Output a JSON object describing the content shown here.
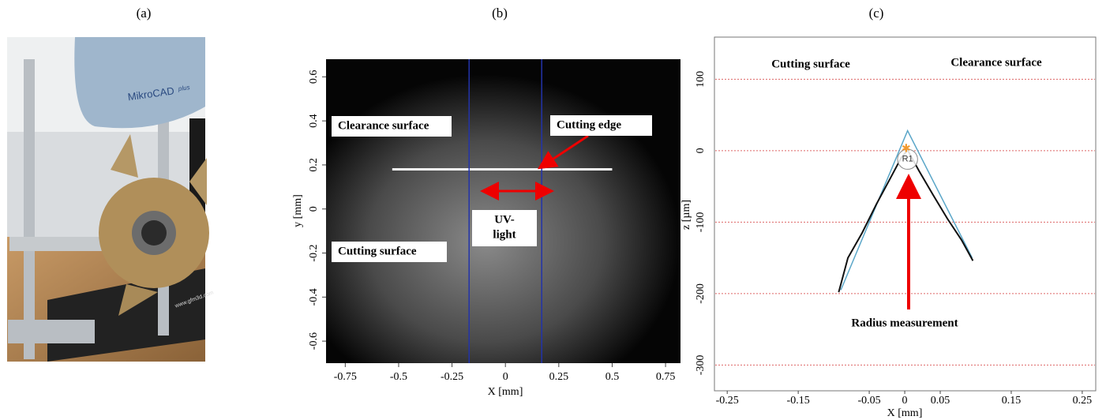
{
  "panels": {
    "a": {
      "label": "(a)",
      "brand": "MikroCAD",
      "brand_sup": "plus",
      "site": "www.gfm3d.com"
    },
    "b": {
      "label": "(b)",
      "xlabel": "X [mm]",
      "ylabel": "y [mm]",
      "xlim": [
        -0.84,
        0.82
      ],
      "ylim": [
        -0.7,
        0.68
      ],
      "xticks": [
        -0.75,
        -0.5,
        -0.25,
        0,
        0.25,
        0.5,
        0.75
      ],
      "yticks": [
        -0.6,
        -0.4,
        -0.2,
        0,
        0.2,
        0.4,
        0.6
      ],
      "edge": {
        "x": [
          -0.53,
          0.5
        ],
        "y": 0.18
      },
      "uv_band": [
        -0.17,
        0.17
      ],
      "annotations": [
        [
          "Clearance surface"
        ],
        [
          "Cutting edge"
        ],
        [
          "Cutting surface"
        ],
        [
          "UV-",
          "light"
        ]
      ]
    },
    "c": {
      "label": "(c)",
      "xlabel": "X [mm]",
      "ylabel": "z [µm]",
      "xlim": [
        -0.268,
        0.269
      ],
      "ylim": [
        -336,
        159
      ],
      "xticks": [
        -0.25,
        -0.15,
        -0.05,
        0,
        0.05,
        0.15,
        0.25
      ],
      "yticks": [
        -300,
        -200,
        -100,
        0,
        100
      ],
      "profile": {
        "x": [
          -0.093,
          -0.08,
          -0.06,
          -0.04,
          -0.02,
          -0.005,
          0.004,
          0.02,
          0.04,
          0.06,
          0.08,
          0.096
        ],
        "z": [
          -198,
          -150,
          -115,
          -75,
          -38,
          -10,
          1,
          -28,
          -62,
          -95,
          -125,
          -154
        ]
      },
      "model": {
        "x": [
          -0.09,
          0.004,
          0.095
        ],
        "z": [
          -195,
          28,
          -150
        ]
      },
      "circle": {
        "x": 0.004,
        "z": -12,
        "r": 14,
        "label": "R1"
      },
      "apex": {
        "x": 0.002,
        "z": 2
      },
      "annotations": [
        "Cutting surface",
        "Clearance surface",
        "Radius measurement"
      ]
    }
  }
}
